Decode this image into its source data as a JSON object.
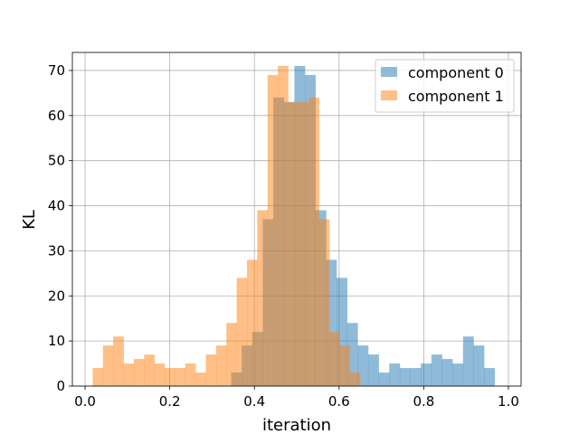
{
  "chart_data": {
    "type": "histogram",
    "xlabel": "iteration",
    "ylabel": "KL",
    "xlim": [
      -0.03,
      1.03
    ],
    "ylim": [
      0,
      74
    ],
    "xticks": [
      0.0,
      0.2,
      0.4,
      0.6,
      0.8,
      1.0
    ],
    "xtick_labels": [
      "0.0",
      "0.2",
      "0.4",
      "0.6",
      "0.8",
      "1.0"
    ],
    "yticks": [
      0,
      10,
      20,
      30,
      40,
      50,
      60,
      70
    ],
    "ytick_labels": [
      "0",
      "10",
      "20",
      "30",
      "40",
      "50",
      "60",
      "70"
    ],
    "grid": true,
    "legend_position": "top-right",
    "series": [
      {
        "name": "component 0",
        "color": "#1f77b4",
        "alpha": 0.5,
        "bin_start": 0.345,
        "bin_width": 0.0249,
        "values": [
          3,
          9,
          12,
          37,
          64,
          63,
          71,
          69,
          39,
          28,
          24,
          14,
          9,
          7,
          3,
          5,
          4,
          4,
          5,
          7,
          6,
          5,
          11,
          9,
          4
        ]
      },
      {
        "name": "component 1",
        "color": "#ff7f0e",
        "alpha": 0.5,
        "bin_start": 0.018,
        "bin_width": 0.0243,
        "values": [
          4,
          9,
          11,
          5,
          6,
          7,
          5,
          4,
          4,
          5,
          3,
          7,
          9,
          14,
          24,
          28,
          39,
          69,
          71,
          63,
          63,
          64,
          37,
          12,
          9,
          3
        ]
      }
    ]
  }
}
